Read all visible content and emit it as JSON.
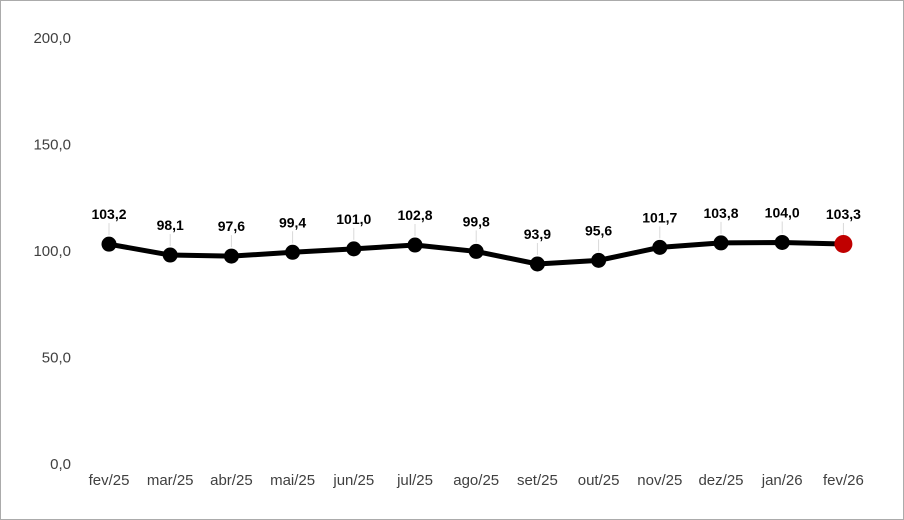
{
  "chart_data": {
    "type": "line",
    "title": "",
    "categories": [
      "fev/25",
      "mar/25",
      "abr/25",
      "mai/25",
      "jun/25",
      "jul/25",
      "ago/25",
      "set/25",
      "out/25",
      "nov/25",
      "dez/25",
      "jan/26",
      "fev/26"
    ],
    "values": [
      103.2,
      98.1,
      97.6,
      99.4,
      101.0,
      102.8,
      99.8,
      93.9,
      95.6,
      101.7,
      103.8,
      104.0,
      103.3
    ],
    "point_labels": [
      "103,2",
      "98,1",
      "97,6",
      "99,4",
      "101,0",
      "102,8",
      "99,8",
      "93,9",
      "95,6",
      "101,7",
      "103,8",
      "104,0",
      "103,3"
    ],
    "xlabel": "",
    "ylabel": "",
    "y_tick_labels": [
      "0,0",
      "50,0",
      "100,0",
      "150,0",
      "200,0"
    ],
    "y_tick_values": [
      0,
      50,
      100,
      150,
      200
    ],
    "ylim": [
      0,
      200
    ],
    "grid": false,
    "legend": false,
    "line_color": "#000000",
    "point_color": "#000000",
    "label_color": "#000000",
    "tick_label_color": "#404040",
    "leader_line_color": "#d9d9d9",
    "highlight_last_point": true,
    "highlight_color": "#c00000"
  }
}
